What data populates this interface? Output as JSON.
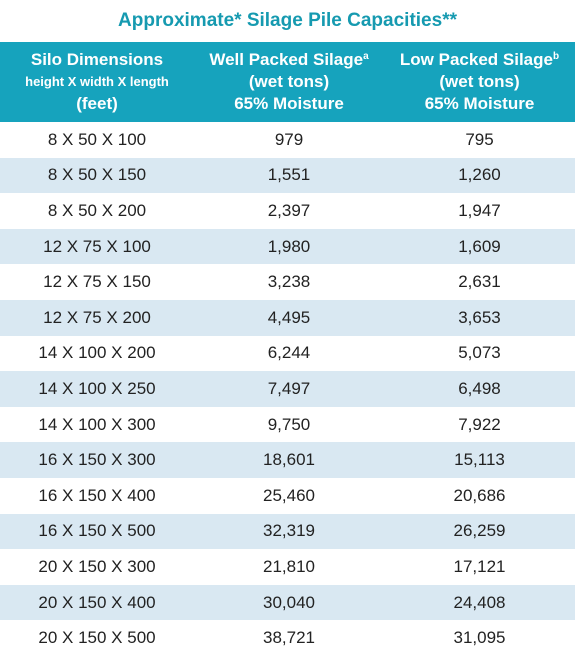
{
  "title": "Approximate* Silage Pile Capacities**",
  "headers": {
    "col1": {
      "line1": "Silo Dimensions",
      "line2": "height X width X length",
      "line3": "(feet)"
    },
    "col2": {
      "line1": "Well Packed Silage",
      "sup": "a",
      "line2": "(wet tons)",
      "line3": "65% Moisture"
    },
    "col3": {
      "line1": "Low Packed Silage",
      "sup": "b",
      "line2": "(wet tons)",
      "line3": "65% Moisture"
    }
  },
  "rows": [
    {
      "dim": "8 X 50 X 100",
      "well": "979",
      "low": "795"
    },
    {
      "dim": "8 X 50 X 150",
      "well": "1,551",
      "low": "1,260"
    },
    {
      "dim": "8 X 50 X 200",
      "well": "2,397",
      "low": "1,947"
    },
    {
      "dim": "12 X 75 X 100",
      "well": "1,980",
      "low": "1,609"
    },
    {
      "dim": "12 X 75 X 150",
      "well": "3,238",
      "low": "2,631"
    },
    {
      "dim": "12 X 75 X 200",
      "well": "4,495",
      "low": "3,653"
    },
    {
      "dim": "14 X 100 X 200",
      "well": "6,244",
      "low": "5,073"
    },
    {
      "dim": "14 X 100 X 250",
      "well": "7,497",
      "low": "6,498"
    },
    {
      "dim": "14 X 100 X 300",
      "well": "9,750",
      "low": "7,922"
    },
    {
      "dim": "16 X 150 X 300",
      "well": "18,601",
      "low": "15,113"
    },
    {
      "dim": "16 X 150 X 400",
      "well": "25,460",
      "low": "20,686"
    },
    {
      "dim": "16 X 150 X 500",
      "well": "32,319",
      "low": "26,259"
    },
    {
      "dim": "20 X 150 X 300",
      "well": "21,810",
      "low": "17,121"
    },
    {
      "dim": "20 X 150 X 400",
      "well": "30,040",
      "low": "24,408"
    },
    {
      "dim": "20 X 150 X 500",
      "well": "38,721",
      "low": "31,095"
    }
  ],
  "colors": {
    "title": "#169ab0",
    "header_bg": "#16a3bd",
    "row_stripe": "#d9e8f2"
  }
}
